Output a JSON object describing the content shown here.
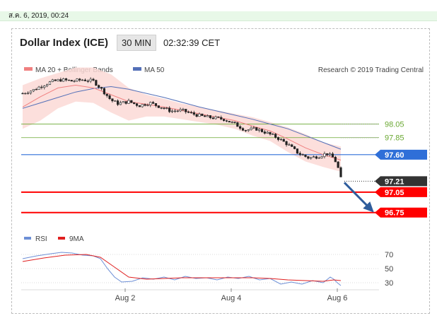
{
  "date_bar": {
    "text": "ส.ค. 6, 2019, 00:24"
  },
  "header": {
    "title": "Dollar Index (ICE)",
    "timeframe": "30 MIN",
    "clock": "02:32:39 CET"
  },
  "legend": {
    "ma20_bb": "MA 20 + Bollinger Bands",
    "ma50": "MA 50",
    "credit": "Research © 2019 Trading Central",
    "rsi": "RSI",
    "ma9": "9MA"
  },
  "colors": {
    "ma20": "#f08080",
    "bands_fill": "#fbd9d6",
    "ma50": "#5470b8",
    "resistance": "#6aa832",
    "pivot": "#2f6fd8",
    "support": "#ff0000",
    "current": "#333333",
    "rsi": "#6d8fd6",
    "rsi_ma": "#e02020",
    "arrow": "#2f5d9c"
  },
  "chart_data": [
    {
      "type": "candlestick",
      "title": "Dollar Index (ICE)",
      "ylim": [
        96.55,
        98.75
      ],
      "x_ticks": [
        {
          "label": "Aug 2",
          "x": 0.29
        },
        {
          "label": "Aug 4",
          "x": 0.59
        },
        {
          "label": "Aug 6",
          "x": 0.89
        }
      ],
      "price_path": [
        [
          0.0,
          98.5
        ],
        [
          0.03,
          98.55
        ],
        [
          0.05,
          98.6
        ],
        [
          0.08,
          98.67
        ],
        [
          0.11,
          98.7
        ],
        [
          0.14,
          98.68
        ],
        [
          0.17,
          98.7
        ],
        [
          0.2,
          98.68
        ],
        [
          0.22,
          98.58
        ],
        [
          0.25,
          98.4
        ],
        [
          0.27,
          98.35
        ],
        [
          0.3,
          98.38
        ],
        [
          0.33,
          98.32
        ],
        [
          0.36,
          98.36
        ],
        [
          0.39,
          98.3
        ],
        [
          0.42,
          98.24
        ],
        [
          0.45,
          98.25
        ],
        [
          0.48,
          98.2
        ],
        [
          0.51,
          98.16
        ],
        [
          0.54,
          98.14
        ],
        [
          0.57,
          98.12
        ],
        [
          0.6,
          98.05
        ],
        [
          0.63,
          97.96
        ],
        [
          0.66,
          97.98
        ],
        [
          0.69,
          97.92
        ],
        [
          0.72,
          97.85
        ],
        [
          0.75,
          97.75
        ],
        [
          0.78,
          97.62
        ],
        [
          0.81,
          97.55
        ],
        [
          0.84,
          97.58
        ],
        [
          0.86,
          97.62
        ],
        [
          0.88,
          97.55
        ],
        [
          0.89,
          97.45
        ],
        [
          0.9,
          97.25
        ]
      ],
      "ma20": [
        [
          0.0,
          98.3
        ],
        [
          0.05,
          98.45
        ],
        [
          0.1,
          98.58
        ],
        [
          0.15,
          98.62
        ],
        [
          0.2,
          98.58
        ],
        [
          0.25,
          98.48
        ],
        [
          0.3,
          98.38
        ],
        [
          0.35,
          98.34
        ],
        [
          0.4,
          98.3
        ],
        [
          0.45,
          98.25
        ],
        [
          0.5,
          98.2
        ],
        [
          0.55,
          98.15
        ],
        [
          0.6,
          98.1
        ],
        [
          0.65,
          98.02
        ],
        [
          0.7,
          97.95
        ],
        [
          0.75,
          97.83
        ],
        [
          0.8,
          97.7
        ],
        [
          0.85,
          97.6
        ],
        [
          0.9,
          97.52
        ]
      ],
      "ma50": [
        [
          0.0,
          98.28
        ],
        [
          0.05,
          98.36
        ],
        [
          0.1,
          98.44
        ],
        [
          0.15,
          98.52
        ],
        [
          0.2,
          98.57
        ],
        [
          0.25,
          98.6
        ],
        [
          0.3,
          98.56
        ],
        [
          0.35,
          98.5
        ],
        [
          0.4,
          98.44
        ],
        [
          0.45,
          98.37
        ],
        [
          0.5,
          98.3
        ],
        [
          0.55,
          98.24
        ],
        [
          0.6,
          98.18
        ],
        [
          0.65,
          98.12
        ],
        [
          0.7,
          98.05
        ],
        [
          0.75,
          97.98
        ],
        [
          0.8,
          97.88
        ],
        [
          0.85,
          97.78
        ],
        [
          0.9,
          97.68
        ]
      ],
      "band_upper": [
        [
          0.0,
          98.62
        ],
        [
          0.05,
          98.72
        ],
        [
          0.1,
          98.8
        ],
        [
          0.15,
          98.88
        ],
        [
          0.2,
          98.88
        ],
        [
          0.25,
          98.78
        ],
        [
          0.3,
          98.58
        ],
        [
          0.35,
          98.48
        ],
        [
          0.4,
          98.42
        ],
        [
          0.45,
          98.35
        ],
        [
          0.5,
          98.3
        ],
        [
          0.55,
          98.25
        ],
        [
          0.6,
          98.2
        ],
        [
          0.65,
          98.15
        ],
        [
          0.7,
          98.08
        ],
        [
          0.75,
          98.0
        ],
        [
          0.8,
          97.9
        ],
        [
          0.85,
          97.78
        ],
        [
          0.9,
          97.72
        ]
      ],
      "band_lower": [
        [
          0.0,
          97.98
        ],
        [
          0.05,
          98.1
        ],
        [
          0.1,
          98.28
        ],
        [
          0.15,
          98.38
        ],
        [
          0.2,
          98.36
        ],
        [
          0.25,
          98.22
        ],
        [
          0.3,
          98.1
        ],
        [
          0.35,
          98.16
        ],
        [
          0.4,
          98.16
        ],
        [
          0.45,
          98.12
        ],
        [
          0.5,
          98.08
        ],
        [
          0.55,
          98.04
        ],
        [
          0.6,
          97.98
        ],
        [
          0.65,
          97.88
        ],
        [
          0.7,
          97.8
        ],
        [
          0.75,
          97.64
        ],
        [
          0.8,
          97.5
        ],
        [
          0.85,
          97.42
        ],
        [
          0.9,
          97.35
        ]
      ],
      "levels": [
        {
          "value": 98.05,
          "label": "98.05",
          "kind": "resistance"
        },
        {
          "value": 97.85,
          "label": "97.85",
          "kind": "resistance"
        },
        {
          "value": 97.6,
          "label": "97.60",
          "kind": "pivot"
        },
        {
          "value": 97.21,
          "label": "97.21",
          "kind": "current"
        },
        {
          "value": 97.05,
          "label": "97.05",
          "kind": "support"
        },
        {
          "value": 96.75,
          "label": "96.75",
          "kind": "support"
        }
      ],
      "forecast_arrow": {
        "from": [
          0.91,
          97.19
        ],
        "to": [
          1.0,
          96.78
        ]
      }
    },
    {
      "type": "line",
      "title": "RSI",
      "ylim": [
        20,
        80
      ],
      "y_ticks": [
        70,
        50,
        30
      ],
      "series": [
        {
          "name": "RSI",
          "values": [
            [
              0.0,
              64
            ],
            [
              0.04,
              68
            ],
            [
              0.08,
              71
            ],
            [
              0.11,
              73
            ],
            [
              0.14,
              72
            ],
            [
              0.17,
              69
            ],
            [
              0.2,
              68
            ],
            [
              0.22,
              64
            ],
            [
              0.24,
              50
            ],
            [
              0.26,
              38
            ],
            [
              0.28,
              31
            ],
            [
              0.31,
              32
            ],
            [
              0.34,
              37
            ],
            [
              0.37,
              35
            ],
            [
              0.4,
              38
            ],
            [
              0.43,
              34
            ],
            [
              0.46,
              39
            ],
            [
              0.49,
              36
            ],
            [
              0.52,
              37
            ],
            [
              0.55,
              34
            ],
            [
              0.58,
              38
            ],
            [
              0.61,
              36
            ],
            [
              0.64,
              39
            ],
            [
              0.67,
              34
            ],
            [
              0.7,
              36
            ],
            [
              0.73,
              28
            ],
            [
              0.76,
              31
            ],
            [
              0.79,
              28
            ],
            [
              0.82,
              33
            ],
            [
              0.85,
              30
            ],
            [
              0.87,
              38
            ],
            [
              0.88,
              35
            ],
            [
              0.89,
              30
            ],
            [
              0.9,
              26
            ]
          ]
        },
        {
          "name": "9MA",
          "values": [
            [
              0.0,
              60
            ],
            [
              0.06,
              65
            ],
            [
              0.12,
              69
            ],
            [
              0.18,
              70
            ],
            [
              0.22,
              66
            ],
            [
              0.26,
              52
            ],
            [
              0.3,
              38
            ],
            [
              0.35,
              35
            ],
            [
              0.4,
              36
            ],
            [
              0.45,
              37
            ],
            [
              0.5,
              37
            ],
            [
              0.55,
              37
            ],
            [
              0.6,
              37
            ],
            [
              0.65,
              37
            ],
            [
              0.7,
              36
            ],
            [
              0.75,
              34
            ],
            [
              0.8,
              33
            ],
            [
              0.85,
              32
            ],
            [
              0.88,
              34
            ],
            [
              0.9,
              33
            ]
          ]
        }
      ]
    }
  ]
}
